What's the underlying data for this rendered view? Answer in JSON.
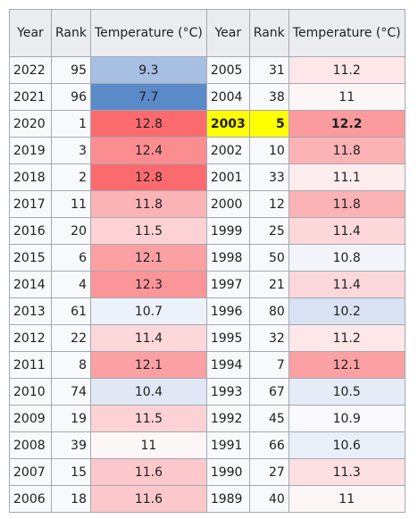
{
  "headers": [
    "Year",
    "Rank",
    "Temperature (°C)",
    "Year",
    "Rank",
    "Temperature (°C)"
  ],
  "rows": [
    {
      "left": {
        "year": "2022",
        "rank": "95",
        "temp": "9.3",
        "color": "#a7bfe3"
      },
      "right": {
        "year": "2005",
        "rank": "31",
        "temp": "11.2",
        "color": "#fde7e8"
      }
    },
    {
      "left": {
        "year": "2021",
        "rank": "96",
        "temp": "7.7",
        "color": "#5b8ac9"
      },
      "right": {
        "year": "2004",
        "rank": "38",
        "temp": "11",
        "color": "#fdf6f7"
      }
    },
    {
      "left": {
        "year": "2020",
        "rank": "1",
        "temp": "12.8",
        "color": "#fb6b6e"
      },
      "right": {
        "year": "2003",
        "rank": "5",
        "temp": "12.2",
        "color": "#fb9b9e",
        "highlight": true
      }
    },
    {
      "left": {
        "year": "2019",
        "rank": "3",
        "temp": "12.4",
        "color": "#fb8d90"
      },
      "right": {
        "year": "2002",
        "rank": "10",
        "temp": "11.8",
        "color": "#fcb3b6"
      }
    },
    {
      "left": {
        "year": "2018",
        "rank": "2",
        "temp": "12.8",
        "color": "#fb6b6e"
      },
      "right": {
        "year": "2001",
        "rank": "33",
        "temp": "11.1",
        "color": "#fdedee"
      }
    },
    {
      "left": {
        "year": "2017",
        "rank": "11",
        "temp": "11.8",
        "color": "#fcb3b6"
      },
      "right": {
        "year": "2000",
        "rank": "12",
        "temp": "11.8",
        "color": "#fcb3b6"
      }
    },
    {
      "left": {
        "year": "2016",
        "rank": "20",
        "temp": "11.5",
        "color": "#fcd2d4"
      },
      "right": {
        "year": "1999",
        "rank": "25",
        "temp": "11.4",
        "color": "#fcd8da"
      }
    },
    {
      "left": {
        "year": "2015",
        "rank": "6",
        "temp": "12.1",
        "color": "#fba0a3"
      },
      "right": {
        "year": "1998",
        "rank": "50",
        "temp": "10.8",
        "color": "#f3f5fb"
      }
    },
    {
      "left": {
        "year": "2014",
        "rank": "4",
        "temp": "12.3",
        "color": "#fb9599"
      },
      "right": {
        "year": "1997",
        "rank": "21",
        "temp": "11.4",
        "color": "#fcd8da"
      }
    },
    {
      "left": {
        "year": "2013",
        "rank": "61",
        "temp": "10.7",
        "color": "#edf2fa"
      },
      "right": {
        "year": "1996",
        "rank": "80",
        "temp": "10.2",
        "color": "#d8e2f2"
      }
    },
    {
      "left": {
        "year": "2012",
        "rank": "22",
        "temp": "11.4",
        "color": "#fcd8da"
      },
      "right": {
        "year": "1995",
        "rank": "32",
        "temp": "11.2",
        "color": "#fde7e8"
      }
    },
    {
      "left": {
        "year": "2011",
        "rank": "8",
        "temp": "12.1",
        "color": "#fba0a3"
      },
      "right": {
        "year": "1994",
        "rank": "7",
        "temp": "12.1",
        "color": "#fba0a3"
      }
    },
    {
      "left": {
        "year": "2010",
        "rank": "74",
        "temp": "10.4",
        "color": "#e0e8f5"
      },
      "right": {
        "year": "1993",
        "rank": "67",
        "temp": "10.5",
        "color": "#e6ecf7"
      }
    },
    {
      "left": {
        "year": "2009",
        "rank": "19",
        "temp": "11.5",
        "color": "#fcd2d4"
      },
      "right": {
        "year": "1992",
        "rank": "45",
        "temp": "10.9",
        "color": "#f9f9fd"
      }
    },
    {
      "left": {
        "year": "2008",
        "rank": "39",
        "temp": "11",
        "color": "#fdf6f7"
      },
      "right": {
        "year": "1991",
        "rank": "66",
        "temp": "10.6",
        "color": "#e9eff8"
      }
    },
    {
      "left": {
        "year": "2007",
        "rank": "15",
        "temp": "11.6",
        "color": "#fcc8cb"
      },
      "right": {
        "year": "1990",
        "rank": "27",
        "temp": "11.3",
        "color": "#fde0e2"
      }
    },
    {
      "left": {
        "year": "2006",
        "rank": "18",
        "temp": "11.6",
        "color": "#fcc8cb"
      },
      "right": {
        "year": "1989",
        "rank": "40",
        "temp": "11",
        "color": "#fdf6f7"
      }
    }
  ]
}
